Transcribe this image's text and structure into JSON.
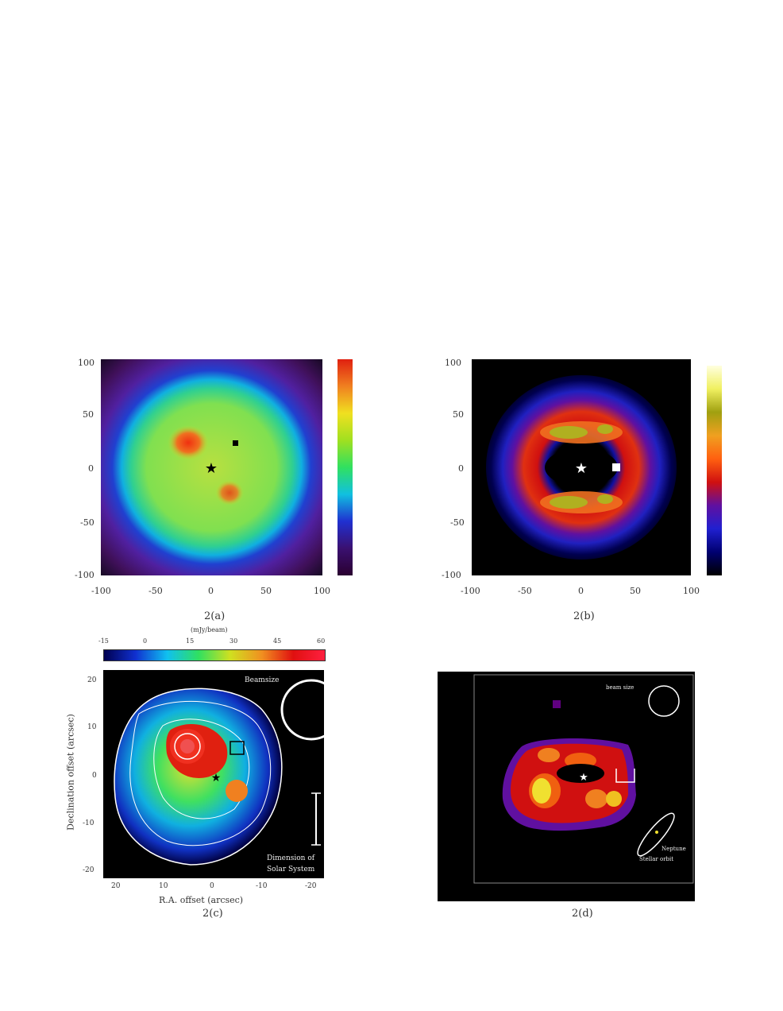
{
  "panels": {
    "a": {
      "caption": "2(a)",
      "xticks": [
        "-100",
        "-50",
        "0",
        "50",
        "100"
      ],
      "yticks": [
        "100",
        "50",
        "0",
        "-50",
        "-100"
      ]
    },
    "b": {
      "caption": "2(b)",
      "xticks": [
        "-100",
        "-50",
        "0",
        "50",
        "100"
      ],
      "yticks": [
        "100",
        "50",
        "0",
        "-50",
        "-100"
      ]
    },
    "c": {
      "caption": "2(c)",
      "xlabel": "R.A. offset (arcsec)",
      "ylabel": "Declination offset (arcsec)",
      "xticks": [
        "20",
        "10",
        "0",
        "-10",
        "-20"
      ],
      "yticks": [
        "20",
        "10",
        "0",
        "-10",
        "-20"
      ],
      "colorbar_title": "(mJy/beam)",
      "colorbar_ticks": [
        "-15",
        "0",
        "15",
        "30",
        "45",
        "60"
      ],
      "label_beam": "Beamsize",
      "label_scale_1": "Dimension of",
      "label_scale_2": "Solar System"
    },
    "d": {
      "caption": "2(d)",
      "label_beam": "beam size",
      "label_orbit_1": "Neptune",
      "label_orbit_2": "Stellar orbit"
    }
  },
  "colors": {
    "rainbow": [
      "#2a0030",
      "#3a1070",
      "#2030d0",
      "#10c0e0",
      "#30e060",
      "#a0e020",
      "#f0e020",
      "#f08020",
      "#e02010"
    ],
    "heat": [
      "#000000",
      "#000070",
      "#2020d0",
      "#6010a0",
      "#d01010",
      "#ff6010",
      "#f0a020",
      "#a0a010",
      "#f0f060",
      "#ffffe0"
    ]
  }
}
